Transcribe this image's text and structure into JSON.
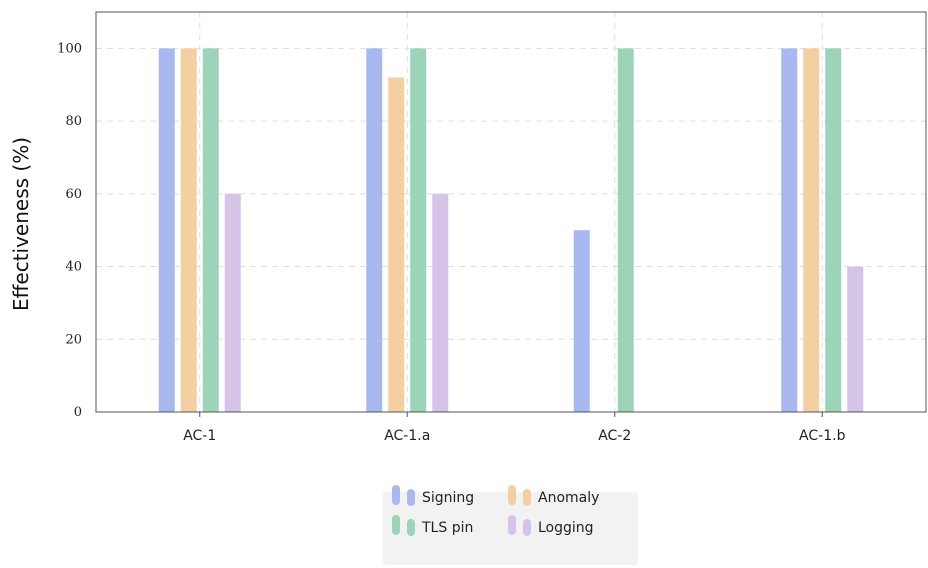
{
  "chart_data": {
    "type": "bar",
    "title": "",
    "xlabel": "",
    "ylabel": "Effectiveness (%)",
    "categories": [
      "AC-1",
      "AC-1.a",
      "AC-2",
      "AC-1.b"
    ],
    "ylim": [
      0,
      110
    ],
    "yticks": [
      0,
      20,
      40,
      60,
      80,
      100
    ],
    "grid": true,
    "legend_position": "bottom-center",
    "series": [
      {
        "name": "Signing",
        "color": "#aab8f0",
        "values": [
          100,
          100,
          50,
          100
        ]
      },
      {
        "name": "Anomaly",
        "color": "#f3cfa2",
        "values": [
          100,
          92,
          0,
          100
        ]
      },
      {
        "name": "TLS pin",
        "color": "#9dd3b8",
        "values": [
          100,
          100,
          100,
          100
        ]
      },
      {
        "name": "Logging",
        "color": "#d5c3e8",
        "values": [
          60,
          60,
          0,
          40
        ]
      }
    ]
  }
}
